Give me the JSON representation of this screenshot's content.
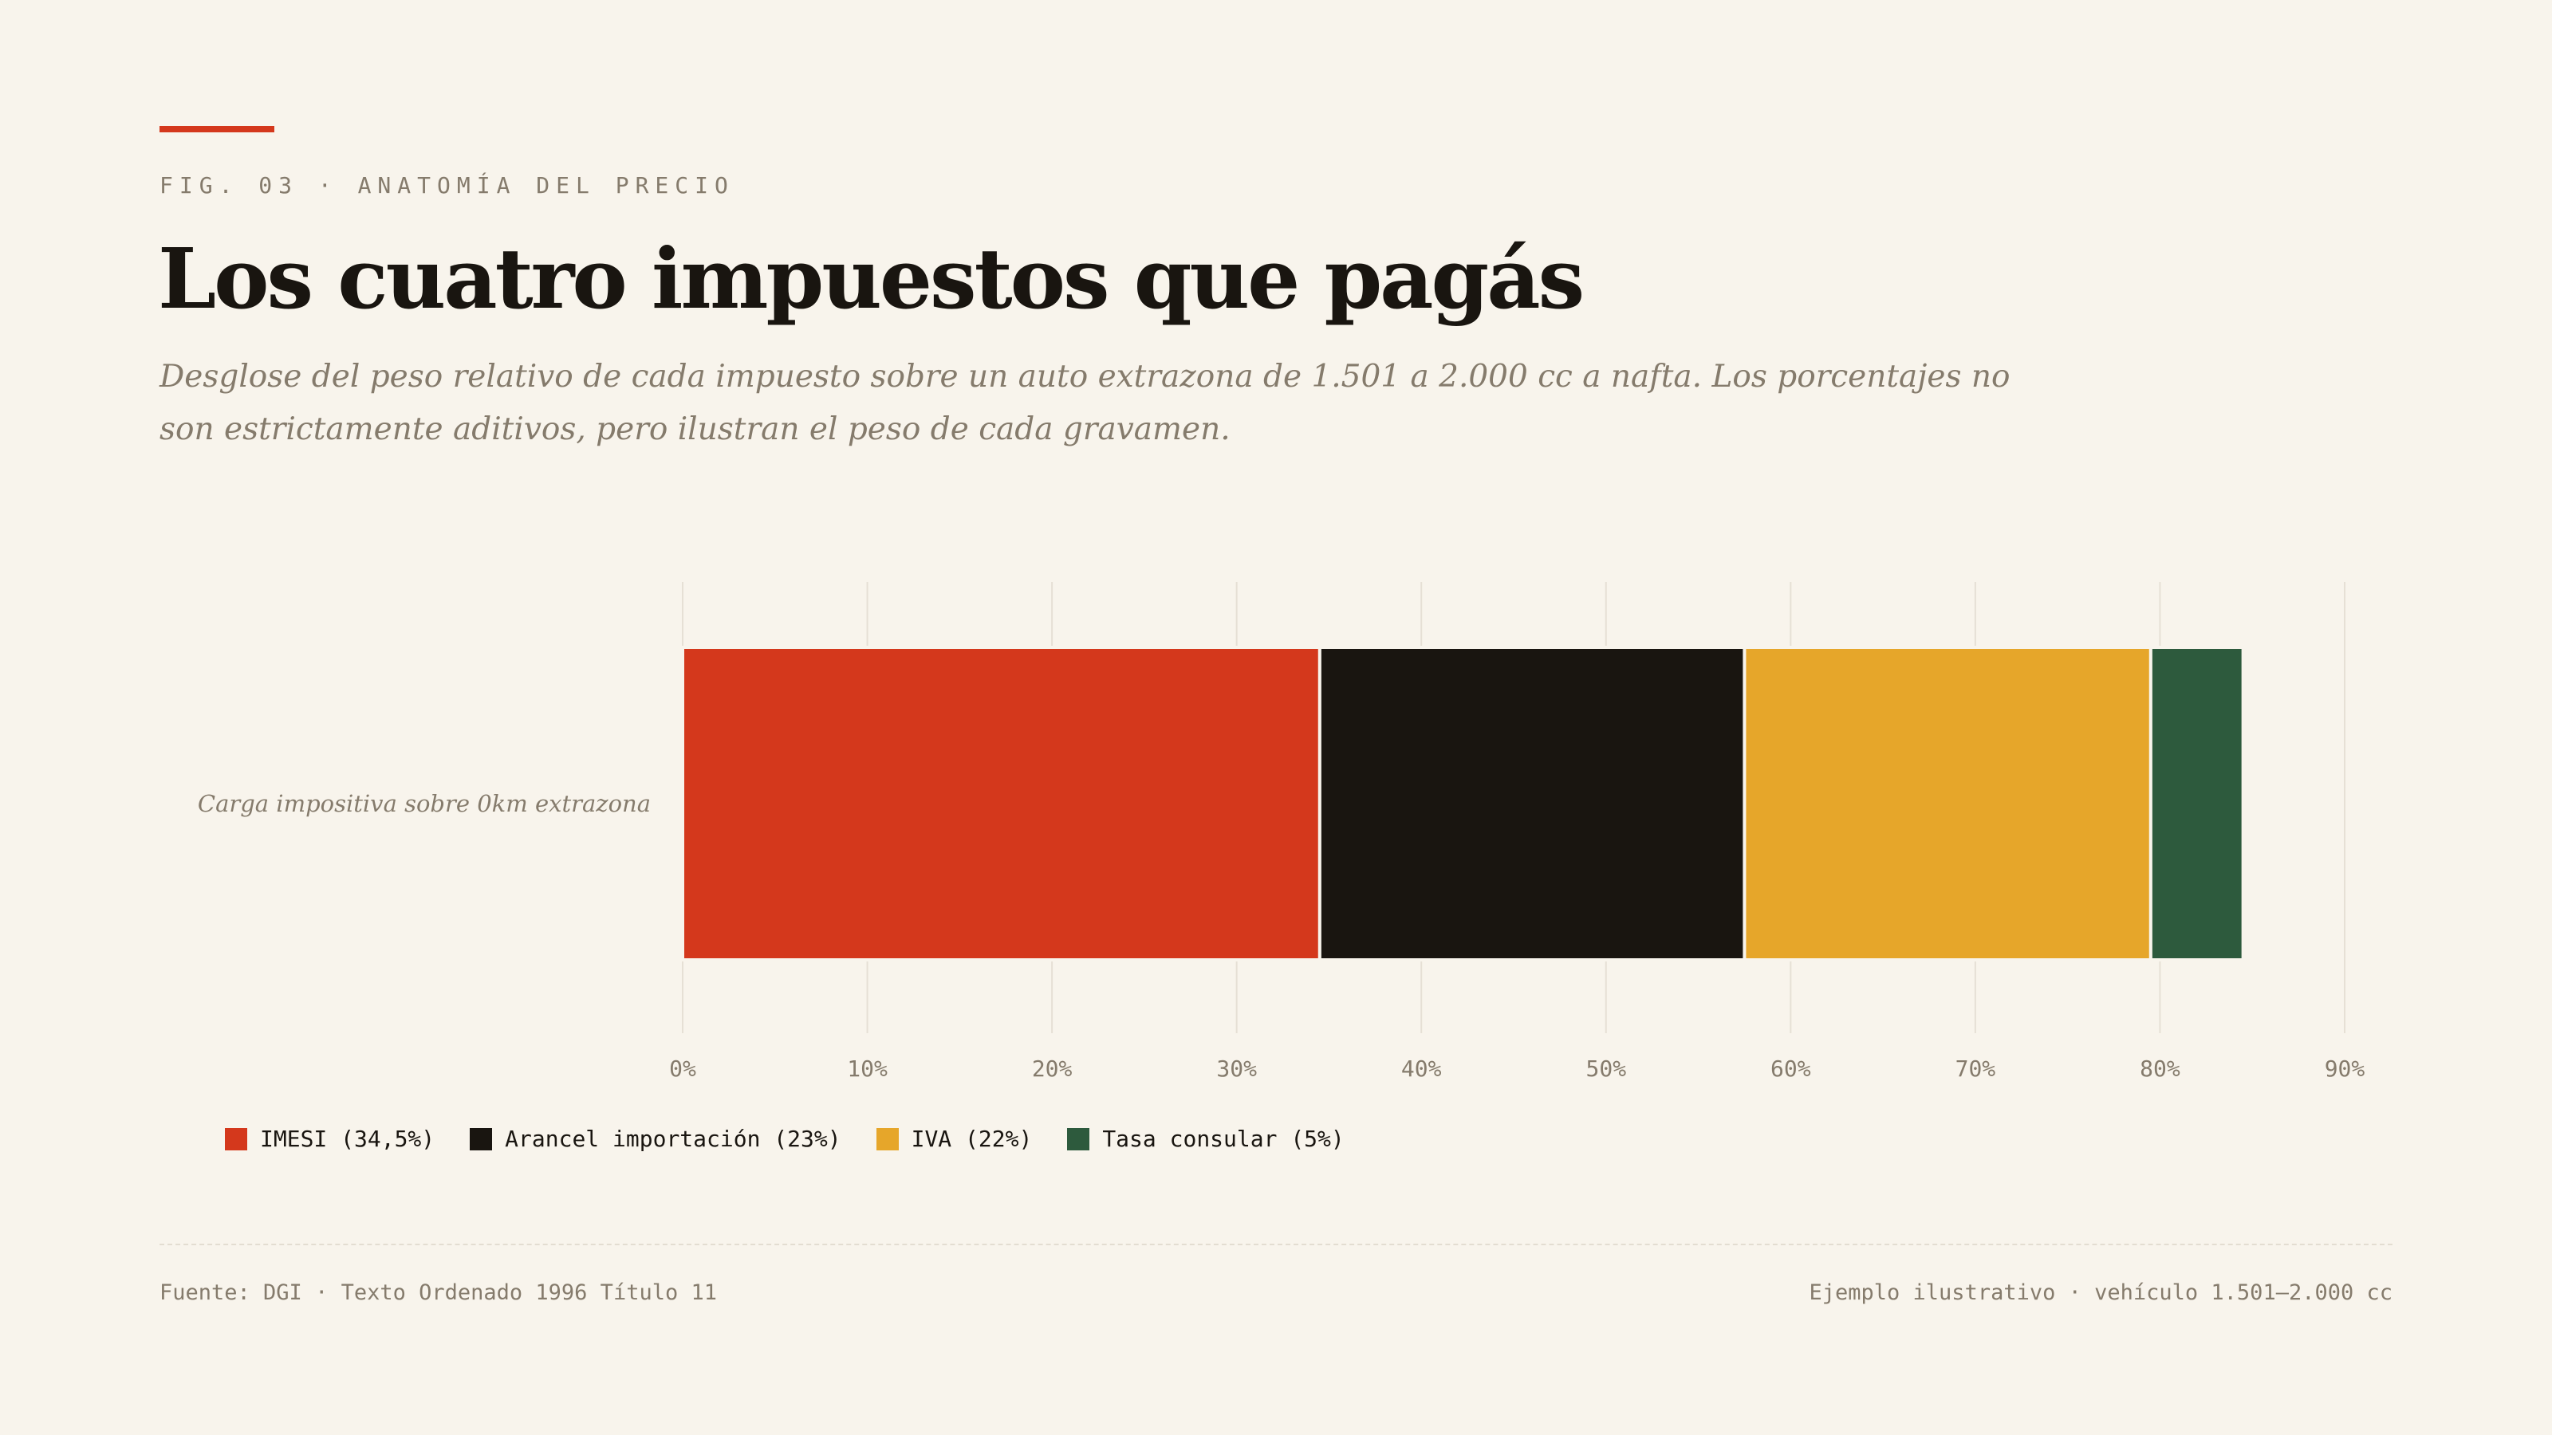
{
  "header": {
    "kicker": "FIG. 03 · ANATOMÍA DEL PRECIO",
    "title": "Los cuatro impuestos que pagás",
    "subtitle": "Desglose del peso relativo de cada impuesto sobre un auto extrazona de 1.501 a 2.000 cc a nafta. Los porcentajes no son estrictamente aditivos, pero ilustran el peso de cada gravamen."
  },
  "legend": [
    {
      "label": "IMESI (34,5%)",
      "color": "#d4381c"
    },
    {
      "label": "Arancel importación (23%)",
      "color": "#191510"
    },
    {
      "label": "IVA (22%)",
      "color": "#e6a62a"
    },
    {
      "label": "Tasa consular (5%)",
      "color": "#2d5a3d"
    }
  ],
  "footer": {
    "source": "Fuente: DGI · Texto Ordenado 1996 Título 11",
    "note": "Ejemplo ilustrativo · vehículo 1.501–2.000 cc"
  },
  "colors": {
    "accent": "#d4381c",
    "background": "#f8f4ec",
    "muted_text": "#857b6c",
    "grid": "#e6e0d5"
  },
  "chart_data": {
    "type": "bar",
    "orientation": "horizontal",
    "stacked": true,
    "categories": [
      "Carga impositiva sobre 0km extrazona"
    ],
    "series": [
      {
        "name": "IMESI",
        "values": [
          34.5
        ],
        "color": "#d4381c"
      },
      {
        "name": "Arancel importación",
        "values": [
          23
        ],
        "color": "#191510"
      },
      {
        "name": "IVA",
        "values": [
          22
        ],
        "color": "#e6a62a"
      },
      {
        "name": "Tasa consular",
        "values": [
          5
        ],
        "color": "#2d5a3d"
      }
    ],
    "xlim": [
      0,
      90
    ],
    "xticks": [
      0,
      10,
      20,
      30,
      40,
      50,
      60,
      70,
      80,
      90
    ],
    "tick_suffix": "%",
    "grid": true,
    "legend_position": "bottom-left"
  }
}
